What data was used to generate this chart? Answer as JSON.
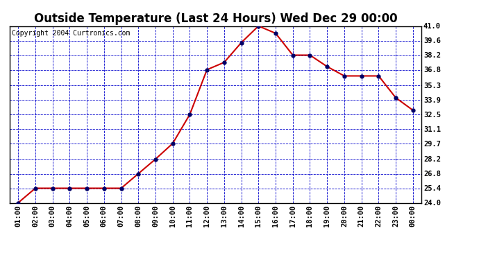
{
  "title": "Outside Temperature (Last 24 Hours) Wed Dec 29 00:00",
  "copyright": "Copyright 2004 Curtronics.com",
  "x_labels": [
    "01:00",
    "02:00",
    "03:00",
    "04:00",
    "05:00",
    "06:00",
    "07:00",
    "08:00",
    "09:00",
    "10:00",
    "11:00",
    "12:00",
    "13:00",
    "14:00",
    "15:00",
    "16:00",
    "17:00",
    "18:00",
    "19:00",
    "20:00",
    "21:00",
    "22:00",
    "23:00",
    "00:00"
  ],
  "y_values": [
    24.0,
    25.4,
    25.4,
    25.4,
    25.4,
    25.4,
    25.4,
    26.8,
    28.2,
    29.7,
    32.5,
    36.8,
    37.5,
    39.4,
    41.0,
    40.3,
    38.2,
    38.2,
    37.1,
    36.2,
    36.2,
    36.2,
    34.1,
    32.9
  ],
  "line_color": "#cc0000",
  "marker_color": "#000066",
  "bg_color": "#ffffff",
  "grid_color": "#0000cc",
  "y_ticks": [
    24.0,
    25.4,
    26.8,
    28.2,
    29.7,
    31.1,
    32.5,
    33.9,
    35.3,
    36.8,
    38.2,
    39.6,
    41.0
  ],
  "y_min": 24.0,
  "y_max": 41.0,
  "title_fontsize": 12,
  "copyright_fontsize": 7,
  "tick_fontsize": 7.5
}
